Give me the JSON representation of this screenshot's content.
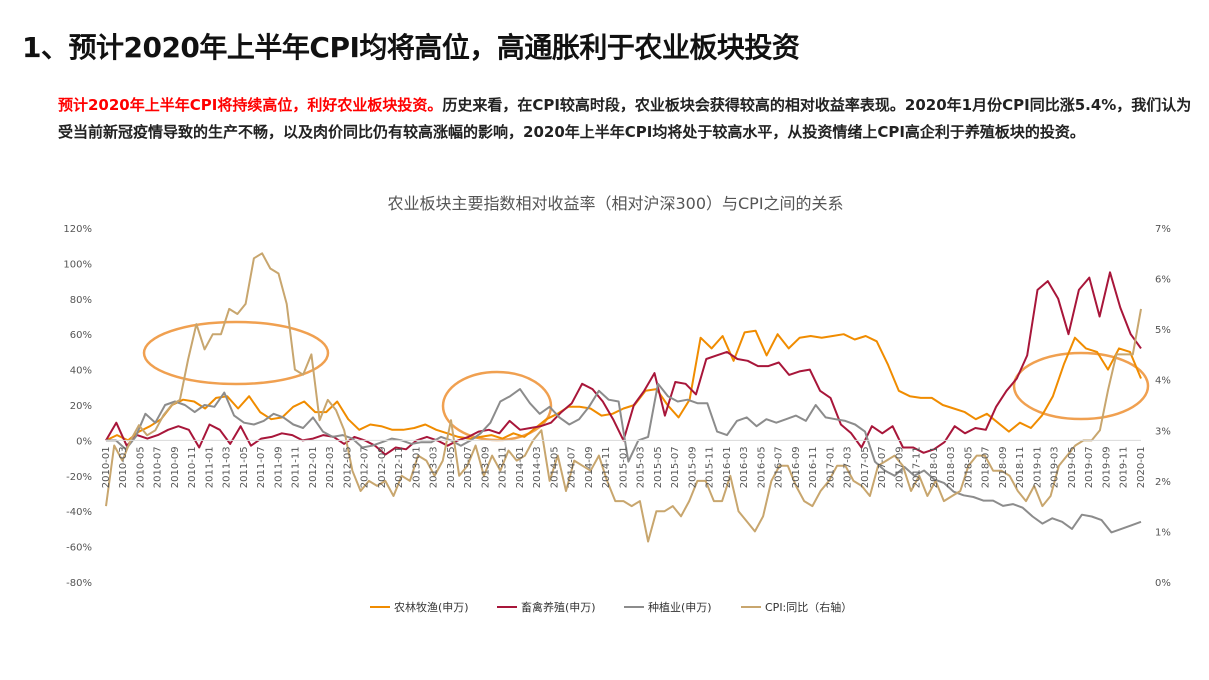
{
  "page": {
    "title": "1、预计2020年上半年CPI均将高位，高通胀利于农业板块投资",
    "intro_highlight": "预计2020年上半年CPI将持续高位，利好农业板块投资。",
    "intro_body": "历史来看，在CPI较高时段，农业板块会获得较高的相对收益率表现。2020年1月份CPI同比涨5.4%，我们认为受当前新冠疫情导致的生产不畅，以及肉价同比仍有较高涨幅的影响，2020年上半年CPI均将处于较高水平，从投资情绪上CPI高企利于养殖板块的投资。"
  },
  "chart_data": {
    "type": "line",
    "title": "农业板块主要指数相对收益率（相对沪深300）与CPI之间的关系",
    "x_labels": [
      "2010-01",
      "2010-03",
      "2010-05",
      "2010-07",
      "2010-09",
      "2010-11",
      "2011-01",
      "2011-03",
      "2011-05",
      "2011-07",
      "2011-09",
      "2011-11",
      "2012-01",
      "2012-03",
      "2012-05",
      "2012-07",
      "2012-09",
      "2012-11",
      "2013-01",
      "2013-03",
      "2013-05",
      "2013-07",
      "2013-09",
      "2013-11",
      "2014-01",
      "2014-03",
      "2014-05",
      "2014-07",
      "2014-09",
      "2014-11",
      "2015-01",
      "2015-03",
      "2015-05",
      "2015-07",
      "2015-09",
      "2015-11",
      "2016-01",
      "2016-03",
      "2016-05",
      "2016-07",
      "2016-09",
      "2016-11",
      "2017-01",
      "2017-03",
      "2017-05",
      "2017-07",
      "2017-09",
      "2017-11",
      "2018-01",
      "2018-03",
      "2018-05",
      "2018-07",
      "2018-09",
      "2018-11",
      "2019-01",
      "2019-03",
      "2019-05",
      "2019-07",
      "2019-09",
      "2019-11",
      "2020-01"
    ],
    "y_left": {
      "min": -80,
      "max": 120,
      "step": 20,
      "ticks": [
        "120%",
        "100%",
        "80%",
        "60%",
        "40%",
        "20%",
        "0%",
        "-20%",
        "-40%",
        "-60%",
        "-80%"
      ]
    },
    "y_right": {
      "min": 0,
      "max": 7,
      "step": 1,
      "ticks": [
        "7%",
        "6%",
        "5%",
        "4%",
        "3%",
        "2%",
        "1%",
        "0%"
      ]
    },
    "series": [
      {
        "name": "农林牧渔(申万)",
        "axis": "left",
        "color": "#f08c00",
        "values": [
          0,
          3,
          0,
          5,
          8,
          12,
          20,
          23,
          22,
          18,
          24,
          25,
          18,
          25,
          16,
          12,
          13,
          19,
          22,
          16,
          16,
          22,
          12,
          6,
          9,
          8,
          6,
          6,
          7,
          9,
          6,
          4,
          2,
          1,
          2,
          3,
          1,
          4,
          2,
          7,
          12,
          15,
          19,
          19,
          18,
          14,
          15,
          18,
          20,
          28,
          29,
          20,
          13,
          23,
          58,
          52,
          59,
          45,
          61,
          62,
          48,
          60,
          52,
          58,
          59,
          58,
          59,
          60,
          57,
          59,
          56,
          43,
          28,
          25,
          24,
          24,
          20,
          18,
          16,
          12,
          15,
          10,
          5,
          10,
          7,
          14,
          25,
          43,
          58,
          52,
          50,
          40,
          52,
          50,
          35
        ]
      },
      {
        "name": "畜禽养殖(申万)",
        "axis": "left",
        "color": "#a8163a",
        "values": [
          0,
          10,
          -3,
          3,
          1,
          3,
          6,
          8,
          6,
          -4,
          9,
          6,
          -2,
          8,
          -3,
          1,
          2,
          4,
          3,
          0,
          1,
          3,
          2,
          -2,
          2,
          0,
          -3,
          -8,
          -4,
          -5,
          0,
          2,
          0,
          -3,
          0,
          2,
          5,
          6,
          4,
          11,
          6,
          7,
          8,
          10,
          16,
          21,
          32,
          29,
          22,
          12,
          0,
          20,
          28,
          38,
          14,
          33,
          32,
          26,
          46,
          48,
          50,
          46,
          45,
          42,
          42,
          44,
          37,
          39,
          40,
          28,
          24,
          9,
          4,
          -4,
          8,
          4,
          8,
          -4,
          -4,
          -7,
          -5,
          -1,
          8,
          4,
          7,
          6,
          19,
          28,
          35,
          48,
          85,
          90,
          80,
          60,
          85,
          92,
          70,
          95,
          75,
          60,
          52
        ]
      },
      {
        "name": "种植业(申万)",
        "axis": "left",
        "color": "#8c8c8c",
        "values": [
          0,
          0,
          -5,
          2,
          15,
          10,
          20,
          22,
          20,
          16,
          20,
          19,
          27,
          14,
          10,
          9,
          11,
          15,
          13,
          9,
          7,
          13,
          5,
          2,
          3,
          1,
          -4,
          -3,
          -1,
          1,
          0,
          -2,
          -1,
          -1,
          2,
          0,
          -3,
          0,
          4,
          10,
          22,
          25,
          29,
          21,
          15,
          19,
          13,
          9,
          12,
          19,
          28,
          23,
          22,
          -12,
          0,
          2,
          32,
          25,
          22,
          23,
          21,
          21,
          5,
          3,
          11,
          13,
          8,
          12,
          10,
          12,
          14,
          11,
          20,
          13,
          12,
          11,
          9,
          5,
          -12,
          -17,
          -20,
          -15,
          -20,
          -17,
          -22,
          -24,
          -29,
          -31,
          -32,
          -34,
          -34,
          -37,
          -36,
          -38,
          -43,
          -47,
          -44,
          -46,
          -50,
          -42,
          -43,
          -45,
          -52,
          -50,
          -48,
          -46
        ]
      },
      {
        "name": "CPI:同比（右轴）",
        "axis": "right",
        "color": "#c8a66e",
        "values": [
          1.5,
          2.7,
          2.4,
          2.8,
          3.1,
          2.9,
          3.0,
          3.3,
          3.5,
          3.6,
          4.4,
          5.1,
          4.6,
          4.9,
          4.9,
          5.4,
          5.3,
          5.5,
          6.4,
          6.5,
          6.2,
          6.1,
          5.5,
          4.2,
          4.1,
          4.5,
          3.2,
          3.6,
          3.4,
          3.0,
          2.2,
          1.8,
          2.0,
          1.9,
          2.0,
          1.7,
          2.1,
          2.0,
          2.5,
          2.4,
          2.1,
          2.4,
          3.2,
          2.1,
          2.3,
          2.7,
          2.1,
          2.5,
          2.2,
          2.6,
          2.4,
          2.5,
          2.8,
          3.0,
          2.0,
          2.5,
          1.8,
          2.4,
          2.3,
          2.2,
          2.5,
          2.0,
          1.6,
          1.6,
          1.5,
          1.6,
          0.8,
          1.4,
          1.4,
          1.5,
          1.3,
          1.6,
          2.0,
          2.0,
          1.6,
          1.6,
          2.1,
          1.4,
          1.2,
          1.0,
          1.3,
          2.0,
          2.3,
          2.3,
          1.9,
          1.6,
          1.5,
          1.8,
          2.0,
          2.3,
          2.3,
          2.0,
          1.9,
          1.7,
          2.3,
          2.4,
          2.5,
          2.3,
          1.8,
          2.1,
          1.7,
          2.0,
          1.6,
          1.7,
          1.8,
          2.3,
          2.5,
          2.5,
          2.2,
          2.2,
          2.1,
          1.8,
          1.6,
          1.9,
          1.5,
          1.7,
          2.3,
          2.5,
          2.7,
          2.8,
          2.8,
          3.0,
          3.8,
          4.5,
          4.5,
          4.5,
          5.4
        ]
      }
    ],
    "highlights": [
      {
        "label": "2011",
        "color": "#f0a050"
      },
      {
        "label": "2013",
        "color": "#f0a050"
      },
      {
        "label": "2019",
        "color": "#f0a050"
      }
    ],
    "legend_position": "bottom"
  }
}
